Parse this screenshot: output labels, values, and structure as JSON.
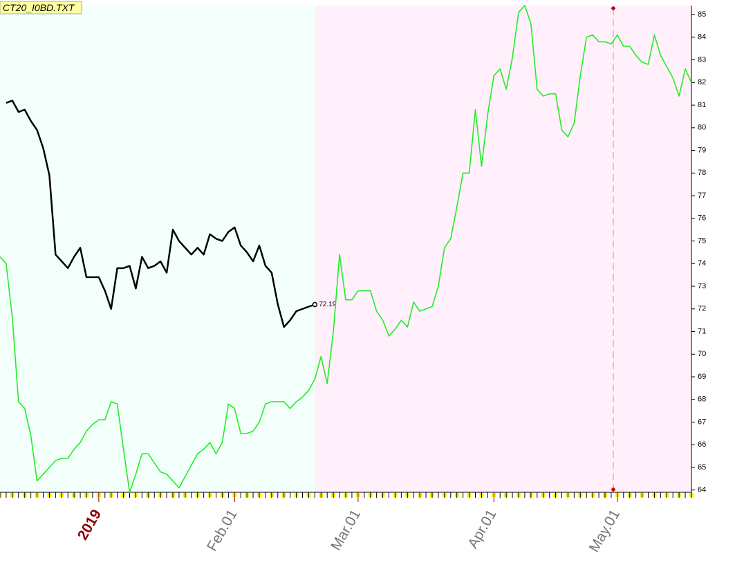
{
  "chart_data": {
    "type": "line",
    "title": "CT20_I0BD.TXT",
    "categories": [
      null,
      null,
      null,
      null,
      null,
      null,
      null,
      null,
      null,
      null,
      null,
      null,
      null,
      null,
      null,
      null,
      "2019",
      null,
      null,
      null,
      null,
      null,
      null,
      null,
      null,
      null,
      null,
      null,
      null,
      null,
      null,
      null,
      null,
      null,
      null,
      null,
      null,
      null,
      "Feb.01",
      null,
      null,
      null,
      null,
      null,
      null,
      null,
      null,
      null,
      null,
      null,
      null,
      null,
      null,
      null,
      null,
      null,
      null,
      null,
      "Mar.01",
      null,
      null,
      null,
      null,
      null,
      null,
      null,
      null,
      null,
      null,
      null,
      null,
      null,
      null,
      null,
      null,
      null,
      null,
      null,
      null,
      null,
      "Apr.01",
      null,
      null,
      null,
      null,
      null,
      null,
      null,
      null,
      null,
      null,
      null,
      null,
      null,
      null,
      null,
      null,
      null,
      null,
      null,
      "May.01",
      null,
      null,
      null,
      null,
      null,
      null,
      null,
      null,
      null,
      null,
      null,
      null
    ],
    "series": [
      {
        "color": "#000000",
        "values": [
          null,
          81.1,
          81.2,
          80.7,
          80.8,
          80.3,
          79.9,
          79.1,
          77.9,
          74.4,
          74.1,
          73.8,
          74.3,
          74.7,
          73.4,
          73.4,
          73.4,
          72.8,
          72.0,
          73.8,
          73.8,
          73.9,
          72.9,
          74.3,
          73.8,
          73.9,
          74.1,
          73.6,
          75.5,
          75.0,
          74.7,
          74.4,
          74.7,
          74.4,
          75.3,
          75.1,
          75.0,
          75.4,
          75.6,
          74.8,
          74.5,
          74.1,
          74.8,
          73.9,
          73.6,
          72.2,
          71.2,
          71.5,
          71.9,
          72.0,
          72.1,
          72.19,
          null,
          null,
          null,
          null,
          null,
          null,
          null,
          null,
          null,
          null,
          null,
          null,
          null,
          null,
          null,
          null,
          null,
          null,
          null,
          null,
          null,
          null,
          null,
          null,
          null,
          null,
          null,
          null,
          null,
          null,
          null,
          null,
          null,
          null,
          null,
          null,
          null,
          null,
          null,
          null,
          null,
          null,
          null,
          null,
          null,
          null,
          null,
          null,
          null,
          null,
          null,
          null,
          null,
          null,
          null,
          null,
          null,
          null,
          null,
          null,
          null
        ]
      },
      {
        "color": "#22ee22",
        "values": [
          74.3,
          74.0,
          71.6,
          67.9,
          67.6,
          66.4,
          64.4,
          64.7,
          65.0,
          65.3,
          65.4,
          65.4,
          65.8,
          66.1,
          66.6,
          66.9,
          67.1,
          67.1,
          67.9,
          67.8,
          65.8,
          63.9,
          64.7,
          65.6,
          65.6,
          65.2,
          64.8,
          64.7,
          64.4,
          64.1,
          64.6,
          65.1,
          65.6,
          65.8,
          66.1,
          65.6,
          66.1,
          67.8,
          67.6,
          66.5,
          66.5,
          66.6,
          67.0,
          67.8,
          67.9,
          67.9,
          67.9,
          67.6,
          67.9,
          68.1,
          68.4,
          68.9,
          69.9,
          68.7,
          71.0,
          74.4,
          72.4,
          72.4,
          72.8,
          72.8,
          72.8,
          71.9,
          71.5,
          70.8,
          71.1,
          71.5,
          71.2,
          72.3,
          71.9,
          72.0,
          72.1,
          73.0,
          74.7,
          75.1,
          76.5,
          78.0,
          78.0,
          80.8,
          78.3,
          80.6,
          82.3,
          82.6,
          81.7,
          83.1,
          85.1,
          85.4,
          84.6,
          81.7,
          81.4,
          81.5,
          81.5,
          79.9,
          79.6,
          80.2,
          82.3,
          84.0,
          84.1,
          83.8,
          83.8,
          83.7,
          84.1,
          83.6,
          83.6,
          83.2,
          82.9,
          82.8,
          84.1,
          83.2,
          82.7,
          82.2,
          81.4,
          82.6,
          82.0
        ]
      }
    ],
    "ylim": [
      63.9,
      85.4
    ],
    "yticks": [
      64,
      65,
      66,
      67,
      68,
      69,
      70,
      71,
      72,
      73,
      74,
      75,
      76,
      77,
      78,
      79,
      80,
      81,
      82,
      83,
      84,
      85
    ]
  }
}
